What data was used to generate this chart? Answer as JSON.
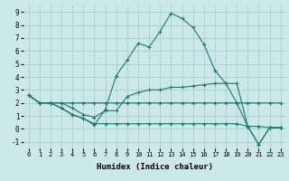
{
  "xlabel": "Humidex (Indice chaleur)",
  "background_color": "#cce8e8",
  "grid_color": "#aacfcf",
  "line_color": "#1a7a6e",
  "xlim": [
    -0.5,
    23.5
  ],
  "ylim": [
    -1.5,
    9.5
  ],
  "xticks": [
    0,
    1,
    2,
    3,
    4,
    5,
    6,
    7,
    8,
    9,
    10,
    11,
    12,
    13,
    14,
    15,
    16,
    17,
    18,
    19,
    20,
    21,
    22,
    23
  ],
  "yticks": [
    -1,
    0,
    1,
    2,
    3,
    4,
    5,
    6,
    7,
    8,
    9
  ],
  "lines": [
    {
      "x": [
        0,
        1,
        2,
        3,
        4,
        5,
        6,
        7,
        8,
        9,
        10,
        11,
        12,
        13,
        14,
        15,
        16,
        17,
        18,
        19,
        20,
        21,
        22,
        23
      ],
      "y": [
        2.6,
        2.0,
        2.0,
        1.6,
        1.1,
        0.8,
        0.3,
        1.5,
        4.1,
        5.3,
        6.6,
        6.3,
        7.5,
        8.9,
        8.5,
        7.8,
        6.5,
        4.5,
        3.5,
        2.0,
        0.2,
        -1.2,
        0.1,
        0.1
      ]
    },
    {
      "x": [
        0,
        1,
        2,
        3,
        4,
        5,
        6,
        7,
        8,
        9,
        10,
        11,
        12,
        13,
        14,
        15,
        16,
        17,
        18,
        19,
        20,
        21,
        22,
        23
      ],
      "y": [
        2.6,
        2.0,
        2.0,
        2.0,
        2.0,
        2.0,
        2.0,
        2.0,
        2.0,
        2.0,
        2.0,
        2.0,
        2.0,
        2.0,
        2.0,
        2.0,
        2.0,
        2.0,
        2.0,
        2.0,
        2.0,
        2.0,
        2.0,
        2.0
      ]
    },
    {
      "x": [
        0,
        1,
        2,
        3,
        4,
        5,
        6,
        7,
        8,
        9,
        10,
        11,
        12,
        13,
        14,
        15,
        16,
        17,
        18,
        19,
        20,
        21,
        22,
        23
      ],
      "y": [
        2.6,
        2.0,
        2.0,
        2.0,
        1.6,
        1.1,
        0.9,
        1.4,
        1.4,
        2.5,
        2.8,
        3.0,
        3.0,
        3.2,
        3.2,
        3.3,
        3.4,
        3.5,
        3.5,
        3.5,
        0.2,
        0.2,
        0.1,
        0.1
      ]
    },
    {
      "x": [
        0,
        1,
        2,
        3,
        4,
        5,
        6,
        7,
        8,
        9,
        10,
        11,
        12,
        13,
        14,
        15,
        16,
        17,
        18,
        19,
        20,
        21,
        22,
        23
      ],
      "y": [
        2.6,
        2.0,
        2.0,
        1.6,
        1.1,
        0.8,
        0.4,
        0.4,
        0.4,
        0.4,
        0.4,
        0.4,
        0.4,
        0.4,
        0.4,
        0.4,
        0.4,
        0.4,
        0.4,
        0.4,
        0.2,
        -1.2,
        0.1,
        0.1
      ]
    }
  ]
}
